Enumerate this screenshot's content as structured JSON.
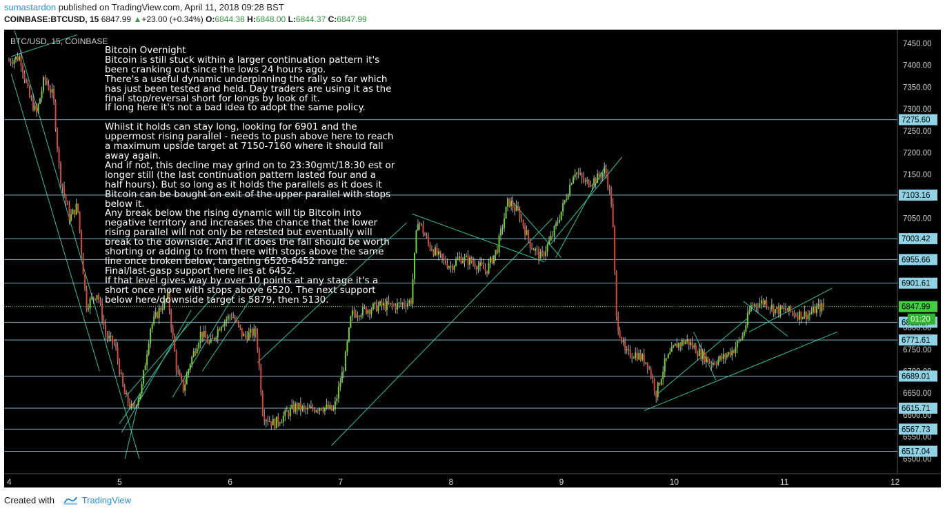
{
  "header": {
    "author": "sumastardon",
    "published_text": "published on TradingView.com, April 11, 2018 09:28 BST",
    "symbol": "COINBASE:BTCUSD, 15",
    "last": "6847.99",
    "change": "+23.00 (+0.34%)",
    "o_label": "O:",
    "o_value": "6844.38",
    "h_label": "H:",
    "h_value": "6848.00",
    "l_label": "L:",
    "l_value": "6844.37",
    "c_label": "C:",
    "c_value": "6847.99"
  },
  "pane_label": "BTC/USD, 15, COINBASE",
  "note_text": "Bitcoin Overnight\nBitcoin is still stuck within a larger continuation pattern it's\nbeen cranking out since the lows 24 hours ago.\nThere's a useful dynamic underpinning the rally so far which\nhas just been tested and held. Day traders are using it as the\nfinal stop/reversal short for longs by look of it.\nIf long here it's not a bad idea to adopt the same policy.\n\nWhilst it holds can stay long, looking for 6901 and the\nuppermost rising parallel - needs to push above here to reach\na maximum upside target at 7150-7160 where it should fall\naway again.\nAnd if not, this decline may grind on to 23:30gmt/18:30 est or\nlonger still (the last continuation pattern lasted four and a\nhalf hours). But so long as it holds the parallels as it does it\nBitcoin can be bought on exit of the upper parallel with stops\nbelow it.\nAny break below the rising dynamic will tip Bitcoin into\nnegative territory and increases the chance that the lower\nrising parallel will not only be retested but eventually will\nbreak to the downside. And if it does the fall should be worth\nshorting or adding to from there with stops above the same\nline once broken below, targeting 6520-6452 range.\nFinal/last-gasp support here lies at 6452.\nIf that level gives way by over 10 points at any stage it's a\nshort once more with stops above 6520. The next support\nbelow here/downside target is 5879, then 5130.",
  "footer": {
    "created_with": "Created with",
    "brand": "TradingView"
  },
  "colors": {
    "background": "#000000",
    "up": "#6fd62a",
    "down": "#e0453a",
    "trendline": "#2ec4a0",
    "hline": "#8fd3e6",
    "label_bg": "#8fd3e6",
    "last_price_bg": "#3fcf3f",
    "countdown_bg": "#2fb52f"
  },
  "chart_data": {
    "type": "candlestick",
    "symbol": "BTC/USD",
    "interval": "15",
    "exchange": "COINBASE",
    "x_ticks": [
      "4",
      "5",
      "6",
      "7",
      "8",
      "9",
      "10",
      "11",
      "12"
    ],
    "x_range_days": [
      4.0,
      12.0
    ],
    "y_ticks": [
      6500,
      6550,
      6600,
      6650,
      6700,
      6750,
      6800,
      6850,
      6900,
      6950,
      7000,
      7050,
      7100,
      7150,
      7200,
      7250,
      7300,
      7350,
      7400,
      7450
    ],
    "ylim": [
      6480,
      7470
    ],
    "horizontal_levels": [
      {
        "label": "7275.60",
        "value": 7275.6
      },
      {
        "label": "7103.16",
        "value": 7103.16
      },
      {
        "label": "7003.42",
        "value": 7003.42
      },
      {
        "label": "6955.66",
        "value": 6955.66
      },
      {
        "label": "6901.61",
        "value": 6901.61
      },
      {
        "label": "6812.27",
        "value": 6812.27
      },
      {
        "label": "6771.61",
        "value": 6771.61
      },
      {
        "label": "6689.01",
        "value": 6689.01
      },
      {
        "label": "6615.71",
        "value": 6615.71
      },
      {
        "label": "6567.73",
        "value": 6567.73
      },
      {
        "label": "6517.04",
        "value": 6517.04
      }
    ],
    "last_price": {
      "label": "6847.99",
      "value": 6847.99
    },
    "countdown": "01:20",
    "price_path": [
      [
        4.0,
        7410
      ],
      [
        4.1,
        7420
      ],
      [
        4.18,
        7330
      ],
      [
        4.25,
        7290
      ],
      [
        4.32,
        7370
      ],
      [
        4.4,
        7330
      ],
      [
        4.46,
        7150
      ],
      [
        4.55,
        7050
      ],
      [
        4.62,
        7080
      ],
      [
        4.7,
        6850
      ],
      [
        4.8,
        6880
      ],
      [
        4.88,
        6780
      ],
      [
        4.96,
        6760
      ],
      [
        5.04,
        6650
      ],
      [
        5.12,
        6610
      ],
      [
        5.2,
        6660
      ],
      [
        5.28,
        6800
      ],
      [
        5.36,
        6840
      ],
      [
        5.44,
        6870
      ],
      [
        5.52,
        6700
      ],
      [
        5.58,
        6660
      ],
      [
        5.64,
        6720
      ],
      [
        5.74,
        6790
      ],
      [
        5.82,
        6760
      ],
      [
        5.92,
        6810
      ],
      [
        6.02,
        6830
      ],
      [
        6.12,
        6780
      ],
      [
        6.24,
        6790
      ],
      [
        6.3,
        6600
      ],
      [
        6.4,
        6580
      ],
      [
        6.5,
        6600
      ],
      [
        6.6,
        6620
      ],
      [
        6.7,
        6610
      ],
      [
        6.82,
        6620
      ],
      [
        6.94,
        6610
      ],
      [
        7.04,
        6720
      ],
      [
        7.1,
        6830
      ],
      [
        7.22,
        6840
      ],
      [
        7.36,
        6850
      ],
      [
        7.5,
        6850
      ],
      [
        7.64,
        6860
      ],
      [
        7.7,
        7050
      ],
      [
        7.8,
        6990
      ],
      [
        7.9,
        6960
      ],
      [
        8.0,
        6940
      ],
      [
        8.08,
        6960
      ],
      [
        8.2,
        6950
      ],
      [
        8.32,
        6930
      ],
      [
        8.42,
        6980
      ],
      [
        8.52,
        7090
      ],
      [
        8.62,
        7060
      ],
      [
        8.72,
        6990
      ],
      [
        8.82,
        6960
      ],
      [
        8.92,
        7010
      ],
      [
        9.02,
        7080
      ],
      [
        9.12,
        7160
      ],
      [
        9.22,
        7130
      ],
      [
        9.32,
        7140
      ],
      [
        9.4,
        7160
      ],
      [
        9.46,
        7080
      ],
      [
        9.5,
        6820
      ],
      [
        9.58,
        6740
      ],
      [
        9.68,
        6740
      ],
      [
        9.78,
        6720
      ],
      [
        9.86,
        6650
      ],
      [
        9.94,
        6720
      ],
      [
        10.04,
        6760
      ],
      [
        10.14,
        6770
      ],
      [
        10.26,
        6740
      ],
      [
        10.36,
        6720
      ],
      [
        10.46,
        6730
      ],
      [
        10.56,
        6750
      ],
      [
        10.64,
        6780
      ],
      [
        10.72,
        6850
      ],
      [
        10.84,
        6860
      ],
      [
        10.94,
        6840
      ],
      [
        11.04,
        6840
      ],
      [
        11.14,
        6830
      ],
      [
        11.24,
        6830
      ],
      [
        11.32,
        6845
      ],
      [
        11.38,
        6848
      ]
    ]
  }
}
